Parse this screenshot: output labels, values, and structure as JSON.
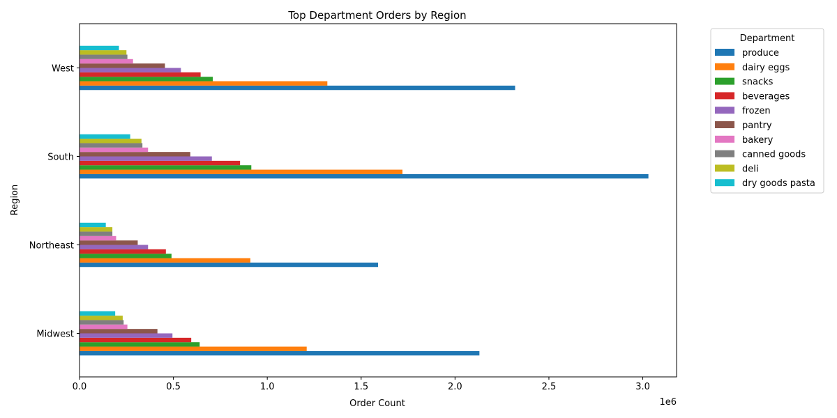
{
  "chart_data": {
    "type": "bar",
    "orientation": "horizontal",
    "title": "Top Department Orders by Region",
    "xlabel": "Order Count",
    "ylabel": "Region",
    "x_scale_label": "1e6",
    "xlim": [
      0,
      3.18
    ],
    "x_ticks": [
      "0.0",
      "0.5",
      "1.0",
      "1.5",
      "2.0",
      "2.5",
      "3.0"
    ],
    "x_tick_values": [
      0,
      0.5,
      1.0,
      1.5,
      2.0,
      2.5,
      3.0
    ],
    "categories": [
      "Midwest",
      "Northeast",
      "South",
      "West"
    ],
    "legend_title": "Department",
    "legend_position": "outside-top-right",
    "grid": false,
    "series": [
      {
        "name": "produce",
        "color": "#1f77b4",
        "values": [
          2.13,
          1.59,
          3.03,
          2.32
        ]
      },
      {
        "name": "dairy eggs",
        "color": "#ff7f0e",
        "values": [
          1.21,
          0.91,
          1.72,
          1.32
        ]
      },
      {
        "name": "snacks",
        "color": "#2ca02c",
        "values": [
          0.64,
          0.49,
          0.915,
          0.71
        ]
      },
      {
        "name": "beverages",
        "color": "#d62728",
        "values": [
          0.595,
          0.46,
          0.855,
          0.645
        ]
      },
      {
        "name": "frozen",
        "color": "#9467bd",
        "values": [
          0.495,
          0.365,
          0.705,
          0.54
        ]
      },
      {
        "name": "pantry",
        "color": "#8c564b",
        "values": [
          0.415,
          0.31,
          0.59,
          0.455
        ]
      },
      {
        "name": "bakery",
        "color": "#e377c2",
        "values": [
          0.255,
          0.195,
          0.365,
          0.285
        ]
      },
      {
        "name": "canned goods",
        "color": "#7f7f7f",
        "values": [
          0.235,
          0.175,
          0.335,
          0.255
        ]
      },
      {
        "name": "deli",
        "color": "#bcbd22",
        "values": [
          0.23,
          0.175,
          0.33,
          0.25
        ]
      },
      {
        "name": "dry goods pasta",
        "color": "#17becf",
        "values": [
          0.19,
          0.14,
          0.27,
          0.21
        ]
      }
    ]
  }
}
